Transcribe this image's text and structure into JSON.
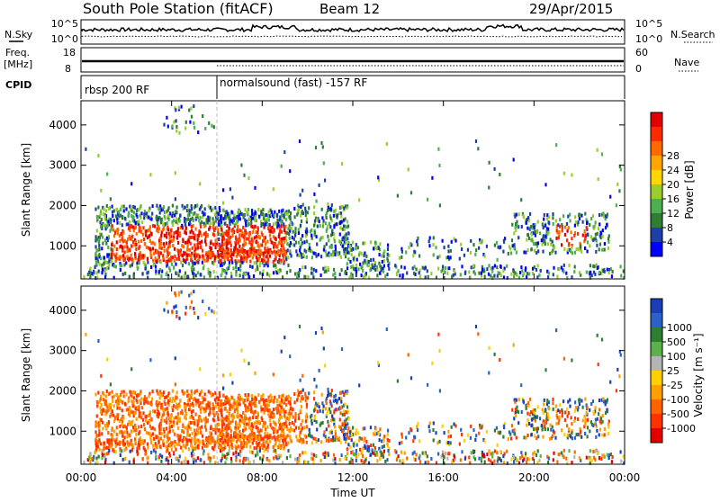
{
  "header": {
    "station": "South Pole Station (fitACF)",
    "beam": "Beam 12",
    "date": "29/Apr/2015"
  },
  "left_labels": {
    "nsky": "N.Sky",
    "freq": "Freq.",
    "freq_unit": "[MHz]",
    "cpid": "CPID"
  },
  "right_labels": {
    "nsearch": "N.Search",
    "nave": "Nave"
  },
  "cpid_segments": [
    {
      "label": "rbsp 200 RF",
      "start_hour": 0,
      "end_hour": 6
    },
    {
      "label": "normalsound (fast) -157 RF",
      "start_hour": 6,
      "end_hour": 24
    }
  ],
  "chart_data": [
    {
      "type": "line",
      "name": "noise",
      "yticks_left": [
        "10^5",
        "10^0"
      ],
      "yticks_right": [
        "10^5",
        "10^0"
      ]
    },
    {
      "type": "line",
      "name": "frequency-nave",
      "ylim_left": [
        8,
        18
      ],
      "ylim_right": [
        0,
        60
      ],
      "yticks_left": [
        "18",
        "8"
      ],
      "yticks_right": [
        "60",
        "0"
      ]
    },
    {
      "type": "heatmap",
      "name": "power",
      "ylabel": "Slant Range [km]",
      "ylim": [
        180,
        4600
      ],
      "yticks": [
        1000,
        2000,
        3000,
        4000
      ],
      "xlim": [
        0,
        24
      ],
      "colorbar": {
        "label": "Power [dB]",
        "ticks": [
          4,
          8,
          12,
          16,
          20,
          24,
          28
        ],
        "range": [
          0,
          32
        ],
        "colors": [
          "#0000ff",
          "#1e3fa8",
          "#2e7d32",
          "#4caf50",
          "#9acd32",
          "#ffd700",
          "#ffa500",
          "#ff6a00",
          "#ff2a00",
          "#e00000"
        ]
      }
    },
    {
      "type": "heatmap",
      "name": "velocity",
      "ylabel": "Slant Range [km]",
      "xlabel": "Time UT",
      "ylim": [
        180,
        4600
      ],
      "yticks": [
        1000,
        2000,
        3000,
        4000
      ],
      "xlim": [
        0,
        24
      ],
      "xticks": [
        "00:00",
        "04:00",
        "08:00",
        "12:00",
        "16:00",
        "20:00",
        "00:00"
      ],
      "colorbar": {
        "label": "Velocity [m s⁻¹]",
        "ticks": [
          "1000",
          "500",
          "100",
          "25",
          "-25",
          "-100",
          "-500",
          "-1000"
        ],
        "colors": [
          "#1a3fb4",
          "#2b62c8",
          "#2e7d32",
          "#5ab34a",
          "#b4b4b4",
          "#ffd000",
          "#ffa000",
          "#ff6400",
          "#ff3200",
          "#e00000"
        ]
      }
    }
  ]
}
